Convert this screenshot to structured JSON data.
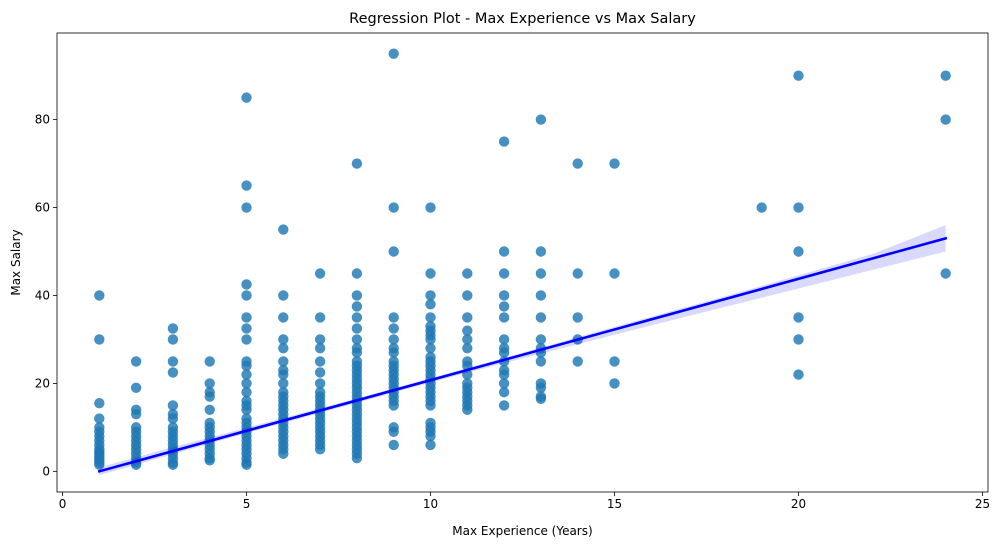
{
  "chart_data": {
    "type": "scatter",
    "title": "Regression Plot - Max Experience vs Max Salary",
    "xlabel": "Max Experience (Years)",
    "ylabel": "Max Salary",
    "xlim": [
      -0.15,
      25.15
    ],
    "ylim": [
      -4.7,
      99.7
    ],
    "x_ticks": [
      0,
      5,
      10,
      15,
      20,
      25
    ],
    "y_ticks": [
      0,
      20,
      40,
      60,
      80
    ],
    "grid": false,
    "legend": "none",
    "point_color": "#1f77b4",
    "regression_color": "#0000ff",
    "ci_color": "#0000ff",
    "regression_line": {
      "x": [
        1,
        24
      ],
      "y": [
        0,
        53
      ]
    },
    "confidence_band": {
      "x": [
        1,
        3,
        5,
        8,
        10,
        12,
        14,
        16,
        18,
        20,
        22,
        24
      ],
      "lower": [
        -0.9,
        3.9,
        8.7,
        15.6,
        20.2,
        24.6,
        28.9,
        33.2,
        37.4,
        41.6,
        45.8,
        50.0
      ],
      "upper": [
        0.9,
        5.5,
        9.9,
        16.6,
        21.2,
        25.8,
        30.5,
        35.2,
        39.8,
        44.6,
        49.4,
        56.0
      ]
    },
    "series": [
      {
        "values": [
          {
            "x": 1,
            "y": 40
          },
          {
            "x": 1,
            "y": 30
          },
          {
            "x": 1,
            "y": 15.5
          },
          {
            "x": 1,
            "y": 12
          },
          {
            "x": 1,
            "y": 10
          },
          {
            "x": 1,
            "y": 9
          },
          {
            "x": 1,
            "y": 8
          },
          {
            "x": 1,
            "y": 7
          },
          {
            "x": 1,
            "y": 6
          },
          {
            "x": 1,
            "y": 5
          },
          {
            "x": 1,
            "y": 4.5
          },
          {
            "x": 1,
            "y": 4
          },
          {
            "x": 1,
            "y": 3.5
          },
          {
            "x": 1,
            "y": 3
          },
          {
            "x": 1,
            "y": 2.5
          },
          {
            "x": 1,
            "y": 2
          },
          {
            "x": 1,
            "y": 1.5
          },
          {
            "x": 2,
            "y": 25
          },
          {
            "x": 2,
            "y": 19
          },
          {
            "x": 2,
            "y": 14
          },
          {
            "x": 2,
            "y": 13
          },
          {
            "x": 2,
            "y": 10
          },
          {
            "x": 2,
            "y": 9
          },
          {
            "x": 2,
            "y": 8
          },
          {
            "x": 2,
            "y": 7
          },
          {
            "x": 2,
            "y": 6
          },
          {
            "x": 2,
            "y": 5
          },
          {
            "x": 2,
            "y": 4
          },
          {
            "x": 2,
            "y": 3
          },
          {
            "x": 2,
            "y": 2
          },
          {
            "x": 2,
            "y": 1.5
          },
          {
            "x": 3,
            "y": 32.5
          },
          {
            "x": 3,
            "y": 30
          },
          {
            "x": 3,
            "y": 25
          },
          {
            "x": 3,
            "y": 22.5
          },
          {
            "x": 3,
            "y": 15
          },
          {
            "x": 3,
            "y": 13
          },
          {
            "x": 3,
            "y": 12
          },
          {
            "x": 3,
            "y": 10
          },
          {
            "x": 3,
            "y": 9
          },
          {
            "x": 3,
            "y": 8
          },
          {
            "x": 3,
            "y": 7
          },
          {
            "x": 3,
            "y": 6
          },
          {
            "x": 3,
            "y": 5
          },
          {
            "x": 3,
            "y": 4
          },
          {
            "x": 3,
            "y": 3
          },
          {
            "x": 3,
            "y": 2
          },
          {
            "x": 3,
            "y": 1.5
          },
          {
            "x": 4,
            "y": 25
          },
          {
            "x": 4,
            "y": 20
          },
          {
            "x": 4,
            "y": 18
          },
          {
            "x": 4,
            "y": 17
          },
          {
            "x": 4,
            "y": 14
          },
          {
            "x": 4,
            "y": 11
          },
          {
            "x": 4,
            "y": 10
          },
          {
            "x": 4,
            "y": 9
          },
          {
            "x": 4,
            "y": 8
          },
          {
            "x": 4,
            "y": 7
          },
          {
            "x": 4,
            "y": 6
          },
          {
            "x": 4,
            "y": 5
          },
          {
            "x": 4,
            "y": 4
          },
          {
            "x": 4,
            "y": 3
          },
          {
            "x": 4,
            "y": 2.5
          },
          {
            "x": 5,
            "y": 85
          },
          {
            "x": 5,
            "y": 65
          },
          {
            "x": 5,
            "y": 60
          },
          {
            "x": 5,
            "y": 42.5
          },
          {
            "x": 5,
            "y": 40
          },
          {
            "x": 5,
            "y": 35
          },
          {
            "x": 5,
            "y": 32.5
          },
          {
            "x": 5,
            "y": 30
          },
          {
            "x": 5,
            "y": 25
          },
          {
            "x": 5,
            "y": 24
          },
          {
            "x": 5,
            "y": 22
          },
          {
            "x": 5,
            "y": 20
          },
          {
            "x": 5,
            "y": 18
          },
          {
            "x": 5,
            "y": 16
          },
          {
            "x": 5,
            "y": 15
          },
          {
            "x": 5,
            "y": 14
          },
          {
            "x": 5,
            "y": 12
          },
          {
            "x": 5,
            "y": 11
          },
          {
            "x": 5,
            "y": 10
          },
          {
            "x": 5,
            "y": 9
          },
          {
            "x": 5,
            "y": 8
          },
          {
            "x": 5,
            "y": 7
          },
          {
            "x": 5,
            "y": 6
          },
          {
            "x": 5,
            "y": 5
          },
          {
            "x": 5,
            "y": 4
          },
          {
            "x": 5,
            "y": 3
          },
          {
            "x": 5,
            "y": 2
          },
          {
            "x": 5,
            "y": 1.5
          },
          {
            "x": 6,
            "y": 55
          },
          {
            "x": 6,
            "y": 40
          },
          {
            "x": 6,
            "y": 35
          },
          {
            "x": 6,
            "y": 30
          },
          {
            "x": 6,
            "y": 28
          },
          {
            "x": 6,
            "y": 25
          },
          {
            "x": 6,
            "y": 23
          },
          {
            "x": 6,
            "y": 22
          },
          {
            "x": 6,
            "y": 20
          },
          {
            "x": 6,
            "y": 18
          },
          {
            "x": 6,
            "y": 17
          },
          {
            "x": 6,
            "y": 16
          },
          {
            "x": 6,
            "y": 15
          },
          {
            "x": 6,
            "y": 14
          },
          {
            "x": 6,
            "y": 13
          },
          {
            "x": 6,
            "y": 12
          },
          {
            "x": 6,
            "y": 11
          },
          {
            "x": 6,
            "y": 10
          },
          {
            "x": 6,
            "y": 9
          },
          {
            "x": 6,
            "y": 8
          },
          {
            "x": 6,
            "y": 7
          },
          {
            "x": 6,
            "y": 6
          },
          {
            "x": 6,
            "y": 5
          },
          {
            "x": 6,
            "y": 4
          },
          {
            "x": 7,
            "y": 45
          },
          {
            "x": 7,
            "y": 35
          },
          {
            "x": 7,
            "y": 30
          },
          {
            "x": 7,
            "y": 28
          },
          {
            "x": 7,
            "y": 25
          },
          {
            "x": 7,
            "y": 22.5
          },
          {
            "x": 7,
            "y": 20
          },
          {
            "x": 7,
            "y": 18
          },
          {
            "x": 7,
            "y": 17
          },
          {
            "x": 7,
            "y": 16
          },
          {
            "x": 7,
            "y": 15
          },
          {
            "x": 7,
            "y": 14
          },
          {
            "x": 7,
            "y": 13
          },
          {
            "x": 7,
            "y": 12
          },
          {
            "x": 7,
            "y": 11
          },
          {
            "x": 7,
            "y": 10
          },
          {
            "x": 7,
            "y": 9
          },
          {
            "x": 7,
            "y": 8
          },
          {
            "x": 7,
            "y": 7
          },
          {
            "x": 7,
            "y": 6
          },
          {
            "x": 7,
            "y": 5
          },
          {
            "x": 8,
            "y": 70
          },
          {
            "x": 8,
            "y": 45
          },
          {
            "x": 8,
            "y": 40
          },
          {
            "x": 8,
            "y": 37.5
          },
          {
            "x": 8,
            "y": 35
          },
          {
            "x": 8,
            "y": 32.5
          },
          {
            "x": 8,
            "y": 30
          },
          {
            "x": 8,
            "y": 28
          },
          {
            "x": 8,
            "y": 27
          },
          {
            "x": 8,
            "y": 25
          },
          {
            "x": 8,
            "y": 24
          },
          {
            "x": 8,
            "y": 23
          },
          {
            "x": 8,
            "y": 22
          },
          {
            "x": 8,
            "y": 21
          },
          {
            "x": 8,
            "y": 20
          },
          {
            "x": 8,
            "y": 19
          },
          {
            "x": 8,
            "y": 18
          },
          {
            "x": 8,
            "y": 17
          },
          {
            "x": 8,
            "y": 16
          },
          {
            "x": 8,
            "y": 15
          },
          {
            "x": 8,
            "y": 14
          },
          {
            "x": 8,
            "y": 13
          },
          {
            "x": 8,
            "y": 12
          },
          {
            "x": 8,
            "y": 11
          },
          {
            "x": 8,
            "y": 10
          },
          {
            "x": 8,
            "y": 9
          },
          {
            "x": 8,
            "y": 8
          },
          {
            "x": 8,
            "y": 7
          },
          {
            "x": 8,
            "y": 6
          },
          {
            "x": 8,
            "y": 5
          },
          {
            "x": 8,
            "y": 4
          },
          {
            "x": 8,
            "y": 3
          },
          {
            "x": 9,
            "y": 95
          },
          {
            "x": 9,
            "y": 60
          },
          {
            "x": 9,
            "y": 50
          },
          {
            "x": 9,
            "y": 35
          },
          {
            "x": 9,
            "y": 32.5
          },
          {
            "x": 9,
            "y": 30
          },
          {
            "x": 9,
            "y": 28
          },
          {
            "x": 9,
            "y": 27
          },
          {
            "x": 9,
            "y": 25
          },
          {
            "x": 9,
            "y": 24
          },
          {
            "x": 9,
            "y": 23
          },
          {
            "x": 9,
            "y": 22
          },
          {
            "x": 9,
            "y": 21
          },
          {
            "x": 9,
            "y": 20
          },
          {
            "x": 9,
            "y": 19
          },
          {
            "x": 9,
            "y": 18
          },
          {
            "x": 9,
            "y": 17
          },
          {
            "x": 9,
            "y": 16
          },
          {
            "x": 9,
            "y": 15
          },
          {
            "x": 9,
            "y": 10
          },
          {
            "x": 9,
            "y": 9
          },
          {
            "x": 9,
            "y": 6
          },
          {
            "x": 10,
            "y": 60
          },
          {
            "x": 10,
            "y": 45
          },
          {
            "x": 10,
            "y": 40
          },
          {
            "x": 10,
            "y": 38
          },
          {
            "x": 10,
            "y": 35
          },
          {
            "x": 10,
            "y": 33
          },
          {
            "x": 10,
            "y": 32
          },
          {
            "x": 10,
            "y": 31
          },
          {
            "x": 10,
            "y": 30
          },
          {
            "x": 10,
            "y": 28
          },
          {
            "x": 10,
            "y": 26
          },
          {
            "x": 10,
            "y": 25
          },
          {
            "x": 10,
            "y": 24
          },
          {
            "x": 10,
            "y": 23
          },
          {
            "x": 10,
            "y": 22
          },
          {
            "x": 10,
            "y": 21
          },
          {
            "x": 10,
            "y": 20
          },
          {
            "x": 10,
            "y": 19
          },
          {
            "x": 10,
            "y": 18
          },
          {
            "x": 10,
            "y": 17
          },
          {
            "x": 10,
            "y": 16
          },
          {
            "x": 10,
            "y": 15
          },
          {
            "x": 10,
            "y": 11
          },
          {
            "x": 10,
            "y": 10
          },
          {
            "x": 10,
            "y": 9
          },
          {
            "x": 10,
            "y": 8
          },
          {
            "x": 10,
            "y": 6
          },
          {
            "x": 11,
            "y": 45
          },
          {
            "x": 11,
            "y": 40
          },
          {
            "x": 11,
            "y": 35
          },
          {
            "x": 11,
            "y": 32
          },
          {
            "x": 11,
            "y": 30
          },
          {
            "x": 11,
            "y": 28
          },
          {
            "x": 11,
            "y": 25
          },
          {
            "x": 11,
            "y": 24
          },
          {
            "x": 11,
            "y": 22
          },
          {
            "x": 11,
            "y": 20
          },
          {
            "x": 11,
            "y": 19
          },
          {
            "x": 11,
            "y": 18
          },
          {
            "x": 11,
            "y": 17
          },
          {
            "x": 11,
            "y": 16
          },
          {
            "x": 11,
            "y": 15
          },
          {
            "x": 11,
            "y": 14
          },
          {
            "x": 12,
            "y": 75
          },
          {
            "x": 12,
            "y": 50
          },
          {
            "x": 12,
            "y": 45
          },
          {
            "x": 12,
            "y": 40
          },
          {
            "x": 12,
            "y": 37.5
          },
          {
            "x": 12,
            "y": 35
          },
          {
            "x": 12,
            "y": 30
          },
          {
            "x": 12,
            "y": 28
          },
          {
            "x": 12,
            "y": 27
          },
          {
            "x": 12,
            "y": 25
          },
          {
            "x": 12,
            "y": 23
          },
          {
            "x": 12,
            "y": 22
          },
          {
            "x": 12,
            "y": 20
          },
          {
            "x": 12,
            "y": 18
          },
          {
            "x": 12,
            "y": 15
          },
          {
            "x": 13,
            "y": 80
          },
          {
            "x": 13,
            "y": 50
          },
          {
            "x": 13,
            "y": 45
          },
          {
            "x": 13,
            "y": 40
          },
          {
            "x": 13,
            "y": 35
          },
          {
            "x": 13,
            "y": 30
          },
          {
            "x": 13,
            "y": 28
          },
          {
            "x": 13,
            "y": 27
          },
          {
            "x": 13,
            "y": 25
          },
          {
            "x": 13,
            "y": 20
          },
          {
            "x": 13,
            "y": 19
          },
          {
            "x": 13,
            "y": 17
          },
          {
            "x": 13,
            "y": 16.5
          },
          {
            "x": 14,
            "y": 70
          },
          {
            "x": 14,
            "y": 45
          },
          {
            "x": 14,
            "y": 35
          },
          {
            "x": 14,
            "y": 30
          },
          {
            "x": 14,
            "y": 25
          },
          {
            "x": 15,
            "y": 70
          },
          {
            "x": 15,
            "y": 45
          },
          {
            "x": 15,
            "y": 25
          },
          {
            "x": 15,
            "y": 20
          },
          {
            "x": 19,
            "y": 60
          },
          {
            "x": 20,
            "y": 90
          },
          {
            "x": 20,
            "y": 60
          },
          {
            "x": 20,
            "y": 50
          },
          {
            "x": 20,
            "y": 35
          },
          {
            "x": 20,
            "y": 30
          },
          {
            "x": 20,
            "y": 22
          },
          {
            "x": 24,
            "y": 90
          },
          {
            "x": 24,
            "y": 80
          },
          {
            "x": 24,
            "y": 45
          }
        ]
      }
    ]
  }
}
